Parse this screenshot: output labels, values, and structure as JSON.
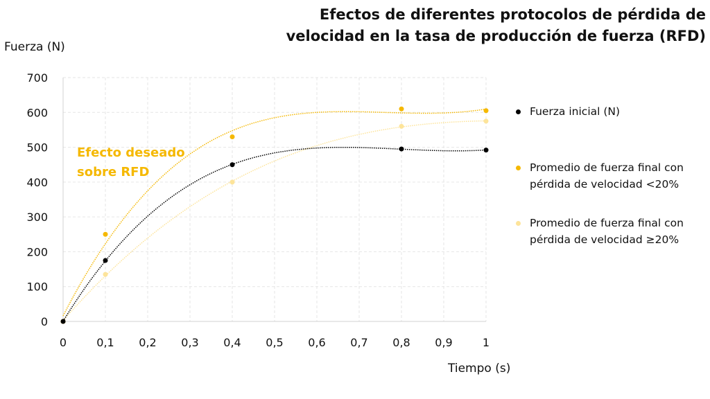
{
  "chart_data": {
    "type": "scatter",
    "title": "Efectos de diferentes protocolos de pérdida de velocidad en la tasa de producción de fuerza (RFD)",
    "xlabel": "Tiempo (s)",
    "ylabel": "Fuerza (N)",
    "xlim": [
      0,
      1
    ],
    "ylim": [
      0,
      700
    ],
    "xticks": [
      "0",
      "0,1",
      "0,2",
      "0,3",
      "0,4",
      "0,5",
      "0,6",
      "0,7",
      "0,8",
      "0,9",
      "1"
    ],
    "yticks": [
      "0",
      "100",
      "200",
      "300",
      "400",
      "500",
      "600",
      "700"
    ],
    "grid": true,
    "legend_position": "right",
    "trendline": "polynomial (dotted)",
    "annotation": {
      "text_line1": "Efecto deseado",
      "text_line2": "sobre RFD",
      "color": "#f5b800"
    },
    "series": [
      {
        "name": "Fuerza inicial (N)",
        "color": "#000000",
        "x": [
          0,
          0.1,
          0.4,
          0.8,
          1
        ],
        "y": [
          0,
          175,
          450,
          495,
          492
        ]
      },
      {
        "name_line1": "Promedio de fuerza final con",
        "name_line2": "pérdida de velocidad <20%",
        "color": "#f5b800",
        "x": [
          0,
          0.1,
          0.4,
          0.8,
          1
        ],
        "y": [
          0,
          250,
          530,
          610,
          605
        ]
      },
      {
        "name_line1": "Promedio de fuerza final con",
        "name_line2": "pérdida de velocidad ≥20%",
        "color": "#fde49a",
        "x": [
          0,
          0.1,
          0.4,
          0.8,
          1
        ],
        "y": [
          0,
          135,
          400,
          560,
          575
        ]
      }
    ]
  }
}
